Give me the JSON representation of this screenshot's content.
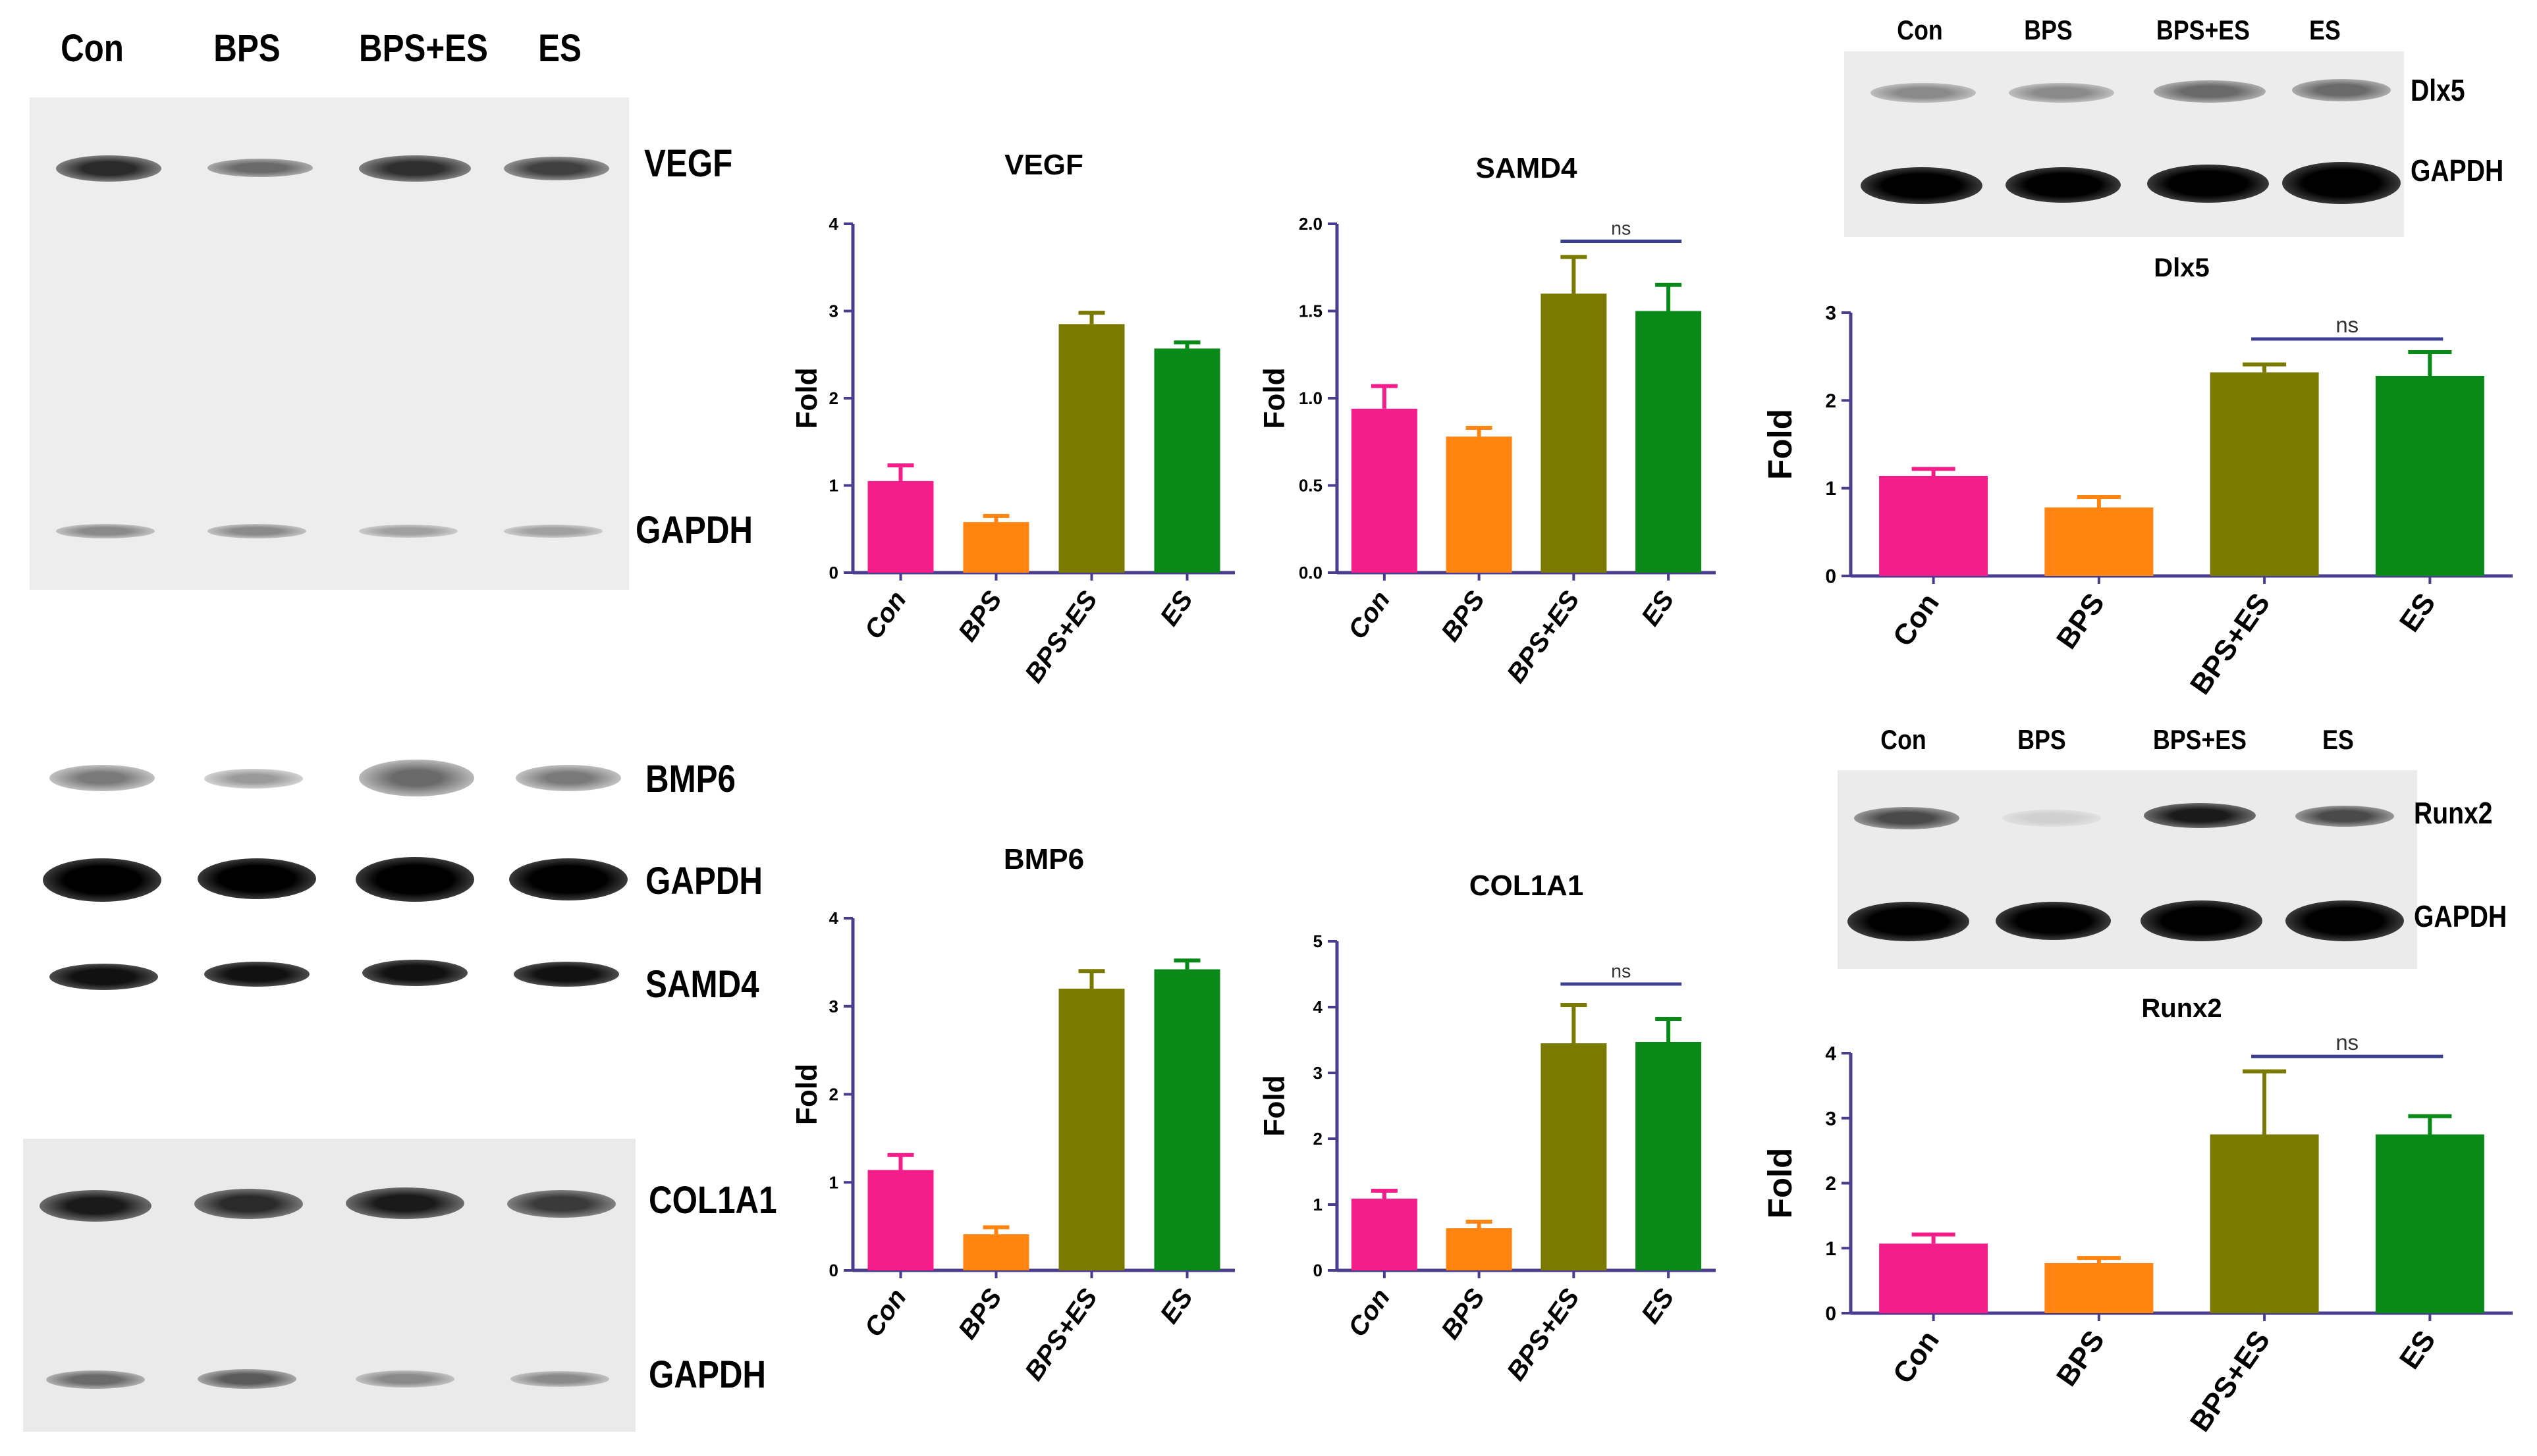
{
  "lanes": [
    "Con",
    "BPS",
    "BPS+ES",
    "ES"
  ],
  "gel_panels": {
    "left_top": {
      "targets": [
        "VEGF",
        "GAPDH"
      ]
    },
    "left_mid": {
      "targets": [
        "BMP6",
        "GAPDH",
        "SAMD4"
      ]
    },
    "left_bottom": {
      "targets": [
        "COL1A1",
        "GAPDH"
      ]
    },
    "right_top": {
      "targets": [
        "Dlx5",
        "GAPDH"
      ]
    },
    "right_bottom": {
      "targets": [
        "Runx2",
        "GAPDH"
      ]
    }
  },
  "colors": {
    "Con": "#f31e8a",
    "BPS": "#ff8410",
    "BPS+ES": "#7b7a00",
    "ES": "#098a18",
    "axis": "#4a3d8f",
    "ns_line": "#3b3f8f"
  },
  "chart_data": [
    {
      "type": "bar",
      "title": "VEGF",
      "categories": [
        "Con",
        "BPS",
        "BPS+ES",
        "ES"
      ],
      "values": [
        1.05,
        0.58,
        2.85,
        2.57
      ],
      "errors": [
        0.18,
        0.07,
        0.13,
        0.07
      ],
      "ylabel": "Fold",
      "ylim": [
        0,
        4
      ],
      "yticks": [
        "0",
        "1",
        "2",
        "3",
        "4"
      ],
      "ns": null
    },
    {
      "type": "bar",
      "title": "SAMD4",
      "categories": [
        "Con",
        "BPS",
        "BPS+ES",
        "ES"
      ],
      "values": [
        0.94,
        0.78,
        1.6,
        1.5
      ],
      "errors": [
        0.13,
        0.05,
        0.21,
        0.15
      ],
      "ylabel": "Fold",
      "ylim": [
        0,
        2.0
      ],
      "yticks": [
        "0.0",
        "0.5",
        "1.0",
        "1.5",
        "2.0"
      ],
      "ns": "ns"
    },
    {
      "type": "bar",
      "title": "BMP6",
      "categories": [
        "Con",
        "BPS",
        "BPS+ES",
        "ES"
      ],
      "values": [
        1.14,
        0.41,
        3.2,
        3.42
      ],
      "errors": [
        0.17,
        0.08,
        0.2,
        0.1
      ],
      "ylabel": "Fold",
      "ylim": [
        0,
        4
      ],
      "yticks": [
        "0",
        "1",
        "2",
        "3",
        "4"
      ],
      "ns": null
    },
    {
      "type": "bar",
      "title": "COL1A1",
      "categories": [
        "Con",
        "BPS",
        "BPS+ES",
        "ES"
      ],
      "values": [
        1.09,
        0.64,
        3.45,
        3.47
      ],
      "errors": [
        0.12,
        0.1,
        0.58,
        0.35
      ],
      "ylabel": "Fold",
      "ylim": [
        0,
        5
      ],
      "yticks": [
        "0",
        "1",
        "2",
        "3",
        "4",
        "5"
      ],
      "ns": "ns"
    },
    {
      "type": "bar",
      "title": "Dlx5",
      "categories": [
        "Con",
        "BPS",
        "BPS+ES",
        "ES"
      ],
      "values": [
        1.14,
        0.78,
        2.32,
        2.28
      ],
      "errors": [
        0.08,
        0.12,
        0.09,
        0.27
      ],
      "ylabel": "Fold",
      "ylim": [
        0,
        3
      ],
      "yticks": [
        "0",
        "1",
        "2",
        "3"
      ],
      "ns": "ns"
    },
    {
      "type": "bar",
      "title": "Runx2",
      "categories": [
        "Con",
        "BPS",
        "BPS+ES",
        "ES"
      ],
      "values": [
        1.07,
        0.77,
        2.75,
        2.75
      ],
      "errors": [
        0.14,
        0.08,
        0.97,
        0.28
      ],
      "ylabel": "Fold",
      "ylim": [
        0,
        4
      ],
      "yticks": [
        "0",
        "1",
        "2",
        "3",
        "4"
      ],
      "ns": "ns"
    }
  ]
}
